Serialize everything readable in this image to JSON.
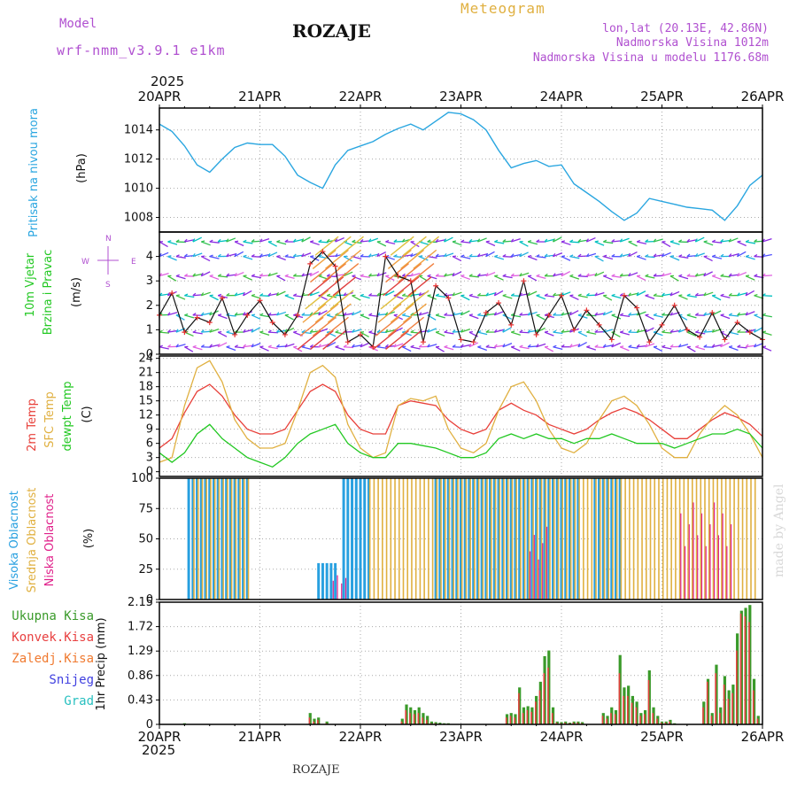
{
  "header": {
    "model_label": "Model",
    "model_name": "wrf-nmm_v3.9.1 e1km",
    "station": "ROZAJE",
    "product": "Meteogram",
    "lonlat": "lon,lat (20.13E, 42.86N)",
    "elevation": "Nadmorska Visina 1012m",
    "model_elevation": "Nadmorska Visina u modelu 1176.68m",
    "year_top": "2025",
    "year_bottom": "2025",
    "footer_station": "ROZAJE",
    "credit": "made by Angel"
  },
  "colors": {
    "pressure": "#2aa6e0",
    "temp2m": "#e8403a",
    "sfc_temp": "#e0b040",
    "dewpoint": "#22c822",
    "high_cloud": "#28a0e0",
    "mid_cloud": "#e0b040",
    "low_cloud": "#e0208a",
    "total_precip": "#3a9a2a",
    "conv_precip": "#e84040",
    "freezing_precip": "#f07a30",
    "snow": "#4040e0",
    "hail": "#28c0c0",
    "model_text": "#b050d0",
    "grid": "#aaaaaa"
  },
  "compass": {
    "n": "N",
    "s": "S",
    "e": "E",
    "w": "W"
  },
  "chart_data": [
    {
      "type": "line",
      "id": "pressure",
      "ylabel_main": "Pritisak na nivou mora",
      "ylabel_unit": "(hPa)",
      "ylim": [
        1007,
        1015.5
      ],
      "yticks": [
        "1008",
        "1010",
        "1012",
        "1014"
      ],
      "x_categories": [
        "20APR",
        "21APR",
        "22APR",
        "23APR",
        "24APR",
        "25APR",
        "26APR"
      ],
      "x_hours": [
        0,
        3,
        6,
        9,
        12,
        15,
        18,
        21,
        24,
        27,
        30,
        33,
        36,
        39,
        42,
        45,
        48,
        51,
        54,
        57,
        60,
        63,
        66,
        69,
        72,
        75,
        78,
        81,
        84,
        87,
        90,
        93,
        96,
        99,
        102,
        105,
        108,
        111,
        114,
        117,
        120,
        123,
        126,
        129,
        132,
        135,
        138,
        141,
        144
      ],
      "values": [
        1014.4,
        1013.9,
        1012.9,
        1011.6,
        1011.1,
        1012.0,
        1012.8,
        1013.1,
        1013.0,
        1013.0,
        1012.2,
        1010.9,
        1010.4,
        1010.0,
        1011.6,
        1012.6,
        1012.9,
        1013.2,
        1013.7,
        1014.1,
        1014.4,
        1014.0,
        1014.6,
        1015.2,
        1015.1,
        1014.7,
        1014.0,
        1012.6,
        1011.4,
        1011.7,
        1011.9,
        1011.5,
        1011.6,
        1010.3,
        1009.7,
        1009.1,
        1008.4,
        1007.8,
        1008.3,
        1009.3,
        1009.1,
        1008.9,
        1008.7,
        1008.6,
        1008.5,
        1007.8,
        1008.8,
        1010.2,
        1010.9
      ],
      "grid": true
    },
    {
      "type": "scatter",
      "id": "wind",
      "ylabel_main": "10m Vjetar",
      "ylabel_sub": "Brzina i Pravac",
      "ylabel_unit": "(m/s)",
      "ylim": [
        0,
        5
      ],
      "yticks": [
        "0",
        "1",
        "2",
        "3",
        "4"
      ],
      "x_categories": [
        "20APR",
        "21APR",
        "22APR",
        "23APR",
        "24APR",
        "25APR",
        "26APR"
      ],
      "speed_hours": [
        0,
        3,
        6,
        9,
        12,
        15,
        18,
        21,
        24,
        27,
        30,
        33,
        36,
        39,
        42,
        45,
        48,
        51,
        54,
        57,
        60,
        63,
        66,
        69,
        72,
        75,
        78,
        81,
        84,
        87,
        90,
        93,
        96,
        99,
        102,
        105,
        108,
        111,
        114,
        117,
        120,
        123,
        126,
        129,
        132,
        135,
        138,
        141,
        144
      ],
      "speed": [
        1.6,
        2.5,
        0.9,
        1.5,
        1.3,
        2.3,
        0.8,
        1.6,
        2.2,
        1.3,
        0.8,
        1.6,
        3.7,
        4.2,
        3.6,
        0.5,
        0.8,
        0.3,
        4.0,
        3.2,
        3.0,
        0.5,
        2.8,
        2.3,
        0.6,
        0.5,
        1.7,
        2.1,
        1.2,
        3.0,
        0.8,
        1.6,
        2.4,
        1.0,
        1.8,
        1.2,
        0.6,
        2.4,
        1.9,
        0.5,
        1.2,
        2.0,
        1.0,
        0.7,
        1.7,
        0.6,
        1.3,
        0.9,
        0.6
      ],
      "direction_bands": [
        {
          "level": 4.6,
          "colors": [
            "#8a2be2",
            "#00c0c0",
            "#30c050"
          ]
        },
        {
          "level": 4.0,
          "colors": [
            "#8a2be2",
            "#5050ff",
            "#20b0e0"
          ]
        },
        {
          "level": 3.2,
          "colors": [
            "#40c040",
            "#8a2be2",
            "#e060e0"
          ]
        },
        {
          "level": 2.4,
          "colors": [
            "#00c0c0",
            "#8a2be2",
            "#40c040"
          ]
        },
        {
          "level": 1.6,
          "colors": [
            "#20b0e0",
            "#30c050",
            "#8a2be2"
          ]
        },
        {
          "level": 0.9,
          "colors": [
            "#8a2be2",
            "#20b0e0",
            "#40c040"
          ]
        },
        {
          "level": 0.3,
          "colors": [
            "#8a2be2",
            "#e060e0",
            "#5050ff"
          ]
        }
      ],
      "strong_wind_hours": [
        36,
        39,
        42,
        54,
        57,
        60
      ],
      "grid": true
    },
    {
      "type": "line",
      "id": "temperature",
      "ylabel_main": "2m Temp",
      "ylabel_sub": "SFC Temp",
      "ylabel_sub2": "dewpt Temp",
      "ylabel_unit": "(C)",
      "ylim": [
        -1,
        24.5
      ],
      "yticks": [
        "0",
        "3",
        "6",
        "9",
        "12",
        "15",
        "18",
        "21",
        "24"
      ],
      "x_categories": [
        "20APR",
        "21APR",
        "22APR",
        "23APR",
        "24APR",
        "25APR",
        "26APR"
      ],
      "x_hours": [
        0,
        3,
        6,
        9,
        12,
        15,
        18,
        21,
        24,
        27,
        30,
        33,
        36,
        39,
        42,
        45,
        48,
        51,
        54,
        57,
        60,
        63,
        66,
        69,
        72,
        75,
        78,
        81,
        84,
        87,
        90,
        93,
        96,
        99,
        102,
        105,
        108,
        111,
        114,
        117,
        120,
        123,
        126,
        129,
        132,
        135,
        138,
        141,
        144
      ],
      "series": [
        {
          "name": "2m Temp",
          "values": [
            5,
            7,
            12.5,
            17,
            18.5,
            16,
            12,
            9,
            8,
            8,
            9,
            13,
            17,
            18.5,
            17,
            12,
            9,
            8,
            8,
            14,
            15,
            14.5,
            14,
            11,
            9,
            8,
            9,
            13,
            14.5,
            13,
            12,
            10,
            9,
            8,
            9,
            11,
            12.5,
            13.5,
            12.5,
            11,
            9,
            7,
            7,
            9,
            11,
            12.5,
            11.5,
            10,
            7.5
          ]
        },
        {
          "name": "SFC Temp",
          "values": [
            2,
            3,
            14,
            22,
            23.5,
            19,
            11,
            7,
            5,
            5,
            6,
            13,
            21,
            22.5,
            20,
            10,
            5,
            3,
            4,
            14,
            15.5,
            15,
            16,
            9,
            5,
            4,
            6,
            13,
            18,
            19,
            15,
            9,
            5,
            4,
            6,
            11,
            15,
            16,
            14,
            10,
            5,
            3,
            3,
            8,
            11.5,
            14,
            12,
            8,
            3
          ]
        },
        {
          "name": "dewpt Temp",
          "values": [
            4,
            2,
            4,
            8,
            10,
            7,
            5,
            3,
            2,
            1,
            3,
            6,
            8,
            9,
            10,
            6,
            4,
            3,
            3,
            6,
            6,
            5.5,
            5,
            4,
            3,
            3,
            4,
            7,
            8,
            7,
            8,
            7,
            7,
            6,
            7,
            7,
            8,
            7,
            6,
            6,
            6,
            5,
            6,
            7,
            8,
            8,
            9,
            8,
            5
          ]
        }
      ],
      "grid": true
    },
    {
      "type": "bar",
      "id": "clouds",
      "ylabel_main": "Visoka Oblacnost",
      "ylabel_sub": "Srednja Oblacnost",
      "ylabel_sub2": "Niska Oblacnost",
      "ylabel_unit": "(%)",
      "ylim": [
        0,
        100
      ],
      "yticks": [
        "0",
        "25",
        "50",
        "75",
        "100"
      ],
      "x_categories": [
        "20APR",
        "21APR",
        "22APR",
        "23APR",
        "24APR",
        "25APR",
        "26APR"
      ],
      "series": [
        {
          "name": "Visoka Oblacnost",
          "ranges": [
            [
              7,
              21,
              100
            ],
            [
              38,
              42,
              30
            ],
            [
              44,
              50,
              100
            ],
            [
              66,
              100,
              100
            ],
            [
              104,
              110,
              100
            ]
          ]
        },
        {
          "name": "Srednja Oblacnost",
          "ranges": [
            [
              8,
              21,
              100
            ],
            [
              50,
              66,
              100
            ],
            [
              66,
              142,
              100
            ]
          ]
        },
        {
          "name": "Niska Oblacnost",
          "ranges": [
            [
              41,
              44,
              20
            ],
            [
              88,
              92,
              60
            ],
            [
              124,
              136,
              80
            ]
          ]
        }
      ],
      "grid": true
    },
    {
      "type": "bar",
      "id": "precip",
      "ylabel_main": "1hr Precip",
      "ylabel_unit": "(mm)",
      "legend": [
        "Ukupna Kisa",
        "Konvek.Kisa",
        "Zaledj.Kisa",
        "Snijeg",
        "Grad"
      ],
      "ylim": [
        0,
        2.15
      ],
      "yticks": [
        "0",
        "0.43",
        "0.86",
        "1.29",
        "1.72",
        "2.15"
      ],
      "x_categories": [
        "20APR",
        "21APR",
        "22APR",
        "23APR",
        "24APR",
        "25APR",
        "26APR"
      ],
      "hours": [
        6,
        36,
        37,
        38,
        40,
        58,
        59,
        60,
        61,
        62,
        63,
        64,
        65,
        66,
        67,
        68,
        69,
        83,
        84,
        85,
        86,
        87,
        88,
        89,
        90,
        91,
        92,
        93,
        94,
        95,
        96,
        97,
        98,
        99,
        100,
        101,
        106,
        107,
        108,
        109,
        110,
        111,
        112,
        113,
        114,
        115,
        116,
        117,
        118,
        119,
        120,
        121,
        122,
        123,
        130,
        131,
        132,
        133,
        134,
        135,
        136,
        137,
        138,
        139,
        140,
        141,
        142,
        143
      ],
      "total": [
        0.02,
        0.2,
        0.1,
        0.12,
        0.05,
        0.1,
        0.35,
        0.3,
        0.25,
        0.3,
        0.2,
        0.15,
        0.05,
        0.04,
        0.03,
        0.02,
        0.02,
        0.18,
        0.2,
        0.18,
        0.65,
        0.3,
        0.32,
        0.3,
        0.5,
        0.75,
        1.2,
        1.3,
        0.3,
        0.05,
        0.04,
        0.05,
        0.03,
        0.05,
        0.05,
        0.04,
        0.2,
        0.15,
        0.3,
        0.25,
        1.22,
        0.65,
        0.68,
        0.5,
        0.4,
        0.2,
        0.25,
        0.95,
        0.3,
        0.15,
        0.05,
        0.05,
        0.08,
        0.02,
        0.4,
        0.8,
        0.2,
        1.05,
        0.3,
        0.85,
        0.6,
        0.7,
        1.6,
        2.0,
        2.05,
        2.1,
        0.8,
        0.15
      ],
      "convective": [
        0,
        0.12,
        0.05,
        0.08,
        0.02,
        0.05,
        0.25,
        0.2,
        0.18,
        0.2,
        0.12,
        0.08,
        0.02,
        0.02,
        0.01,
        0.01,
        0.01,
        0.12,
        0.15,
        0.12,
        0.55,
        0.2,
        0.25,
        0.22,
        0.4,
        0.6,
        0.9,
        1.0,
        0.2,
        0.03,
        0.02,
        0.03,
        0.02,
        0.03,
        0.03,
        0.02,
        0.15,
        0.1,
        0.2,
        0.18,
        0.9,
        0.5,
        0.5,
        0.38,
        0.3,
        0.15,
        0.18,
        0.78,
        0.2,
        0.1,
        0.03,
        0.03,
        0.05,
        0.01,
        0.3,
        0.75,
        0.15,
        0.9,
        0.2,
        0.7,
        0.45,
        0.55,
        1.3,
        1.95,
        1.9,
        1.8,
        0.6,
        0.1
      ],
      "grid": true
    }
  ]
}
